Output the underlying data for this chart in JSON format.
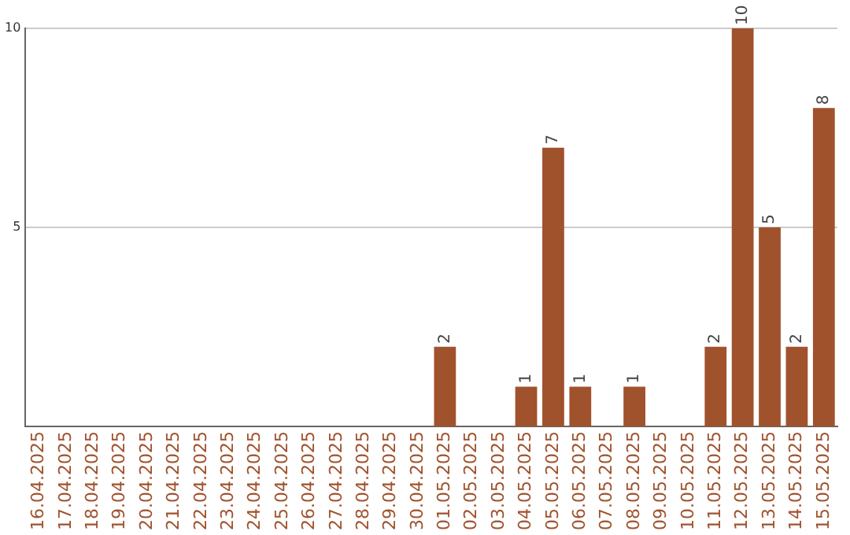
{
  "chart_data": {
    "type": "bar",
    "categories": [
      "16.04.2025",
      "17.04.2025",
      "18.04.2025",
      "19.04.2025",
      "20.04.2025",
      "21.04.2025",
      "22.04.2025",
      "23.04.2025",
      "24.04.2025",
      "25.04.2025",
      "26.04.2025",
      "27.04.2025",
      "28.04.2025",
      "29.04.2025",
      "30.04.2025",
      "01.05.2025",
      "02.05.2025",
      "03.05.2025",
      "04.05.2025",
      "05.05.2025",
      "06.05.2025",
      "07.05.2025",
      "08.05.2025",
      "09.05.2025",
      "10.05.2025",
      "11.05.2025",
      "12.05.2025",
      "13.05.2025",
      "14.05.2025",
      "15.05.2025"
    ],
    "values": [
      0,
      0,
      0,
      0,
      0,
      0,
      0,
      0,
      0,
      0,
      0,
      0,
      0,
      0,
      0,
      2,
      0,
      0,
      1,
      7,
      1,
      0,
      1,
      0,
      0,
      2,
      10,
      5,
      2,
      8
    ],
    "value_labels": [
      null,
      null,
      null,
      null,
      null,
      null,
      null,
      null,
      null,
      null,
      null,
      null,
      null,
      null,
      null,
      "2",
      null,
      null,
      "1",
      "7",
      "1",
      null,
      "1",
      null,
      null,
      "2",
      "10",
      "5",
      "2",
      "8"
    ],
    "color": "#a0522d",
    "ylim": [
      0,
      10
    ],
    "yticks": [
      5,
      10
    ],
    "grid": "y",
    "legend": false
  }
}
